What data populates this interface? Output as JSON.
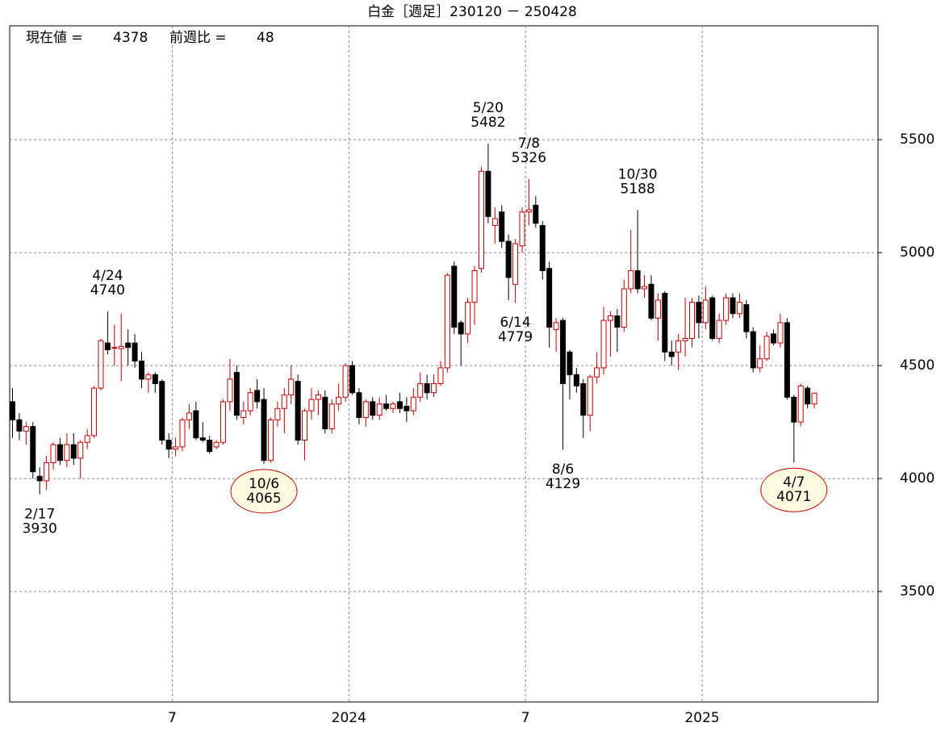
{
  "chart_data": {
    "type": "candlestick",
    "title": "白金［週足］230120 － 250428",
    "current_label": "現在値 =",
    "current": 4378,
    "change_label": "前週比 =",
    "change": 48,
    "up_color": "#c00000",
    "down_color": "#000000",
    "grid": true,
    "ylim": [
      3011,
      6004
    ],
    "yticks": [
      3500,
      4000,
      4500,
      5000,
      5500
    ],
    "categories": [
      null,
      null,
      null,
      null,
      null,
      null,
      null,
      null,
      null,
      null,
      null,
      null,
      null,
      null,
      null,
      null,
      null,
      null,
      null,
      null,
      null,
      null,
      null,
      null,
      "7",
      null,
      null,
      null,
      null,
      null,
      null,
      null,
      null,
      null,
      null,
      null,
      null,
      null,
      null,
      null,
      null,
      null,
      null,
      null,
      null,
      null,
      null,
      null,
      null,
      null,
      "2024",
      null,
      null,
      null,
      null,
      null,
      null,
      null,
      null,
      null,
      null,
      null,
      null,
      null,
      null,
      null,
      null,
      null,
      null,
      null,
      null,
      null,
      null,
      null,
      null,
      null,
      "7",
      null,
      null,
      null,
      null,
      null,
      null,
      null,
      null,
      null,
      null,
      null,
      null,
      null,
      null,
      null,
      null,
      null,
      null,
      null,
      null,
      null,
      null,
      null,
      null,
      null,
      "2025",
      null,
      null,
      null,
      null,
      null,
      null,
      null,
      null,
      null,
      null,
      null,
      null,
      null,
      null,
      null,
      null
    ],
    "ohlc": [
      [
        4340,
        4400,
        4180,
        4260
      ],
      [
        4260,
        4290,
        4170,
        4210
      ],
      [
        4210,
        4250,
        4150,
        4230
      ],
      [
        4230,
        4250,
        4000,
        4030
      ],
      [
        4010,
        4050,
        3930,
        3990
      ],
      [
        3990,
        4100,
        3950,
        4070
      ],
      [
        4070,
        4160,
        4040,
        4150
      ],
      [
        4150,
        4180,
        4060,
        4080
      ],
      [
        4080,
        4200,
        4050,
        4150
      ],
      [
        4150,
        4200,
        4060,
        4090
      ],
      [
        4090,
        4170,
        4000,
        4160
      ],
      [
        4160,
        4220,
        4130,
        4190
      ],
      [
        4190,
        4410,
        4180,
        4400
      ],
      [
        4400,
        4620,
        4390,
        4610
      ],
      [
        4600,
        4740,
        4550,
        4570
      ],
      [
        4580,
        4680,
        4500,
        4580
      ],
      [
        4575,
        4730,
        4430,
        4585
      ],
      [
        4600,
        4660,
        4500,
        4580
      ],
      [
        4600,
        4640,
        4490,
        4520
      ],
      [
        4520,
        4560,
        4400,
        4440
      ],
      [
        4440,
        4470,
        4380,
        4460
      ],
      [
        4460,
        4470,
        4380,
        4420
      ],
      [
        4430,
        4440,
        4150,
        4170
      ],
      [
        4170,
        4200,
        4090,
        4130
      ],
      [
        4130,
        4180,
        4100,
        4140
      ],
      [
        4140,
        4270,
        4120,
        4260
      ],
      [
        4260,
        4330,
        4220,
        4290
      ],
      [
        4300,
        4340,
        4170,
        4180
      ],
      [
        4180,
        4250,
        4160,
        4170
      ],
      [
        4170,
        4190,
        4110,
        4120
      ],
      [
        4140,
        4170,
        4130,
        4160
      ],
      [
        4160,
        4350,
        4150,
        4340
      ],
      [
        4340,
        4530,
        4300,
        4440
      ],
      [
        4470,
        4500,
        4260,
        4280
      ],
      [
        4270,
        4340,
        4240,
        4300
      ],
      [
        4300,
        4400,
        4280,
        4380
      ],
      [
        4390,
        4440,
        4310,
        4340
      ],
      [
        4350,
        4400,
        4065,
        4080
      ],
      [
        4080,
        4270,
        4070,
        4260
      ],
      [
        4260,
        4340,
        4230,
        4310
      ],
      [
        4310,
        4400,
        4200,
        4370
      ],
      [
        4370,
        4500,
        4330,
        4440
      ],
      [
        4430,
        4460,
        4150,
        4170
      ],
      [
        4170,
        4310,
        4080,
        4300
      ],
      [
        4300,
        4400,
        4260,
        4350
      ],
      [
        4350,
        4390,
        4280,
        4370
      ],
      [
        4360,
        4390,
        4200,
        4220
      ],
      [
        4220,
        4350,
        4200,
        4330
      ],
      [
        4330,
        4420,
        4300,
        4360
      ],
      [
        4360,
        4510,
        4340,
        4500
      ],
      [
        4500,
        4520,
        4370,
        4380
      ],
      [
        4380,
        4400,
        4240,
        4270
      ],
      [
        4270,
        4350,
        4230,
        4340
      ],
      [
        4340,
        4360,
        4260,
        4280
      ],
      [
        4280,
        4360,
        4260,
        4330
      ],
      [
        4330,
        4370,
        4300,
        4310
      ],
      [
        4310,
        4340,
        4290,
        4330
      ],
      [
        4340,
        4380,
        4290,
        4310
      ],
      [
        4320,
        4360,
        4250,
        4300
      ],
      [
        4300,
        4400,
        4280,
        4360
      ],
      [
        4360,
        4470,
        4340,
        4420
      ],
      [
        4420,
        4460,
        4350,
        4380
      ],
      [
        4380,
        4460,
        4360,
        4420
      ],
      [
        4420,
        4520,
        4410,
        4490
      ],
      [
        4490,
        4910,
        4470,
        4900
      ],
      [
        4940,
        4960,
        4640,
        4670
      ],
      [
        4690,
        4700,
        4500,
        4640
      ],
      [
        4640,
        4800,
        4600,
        4780
      ],
      [
        4780,
        4940,
        4680,
        4920
      ],
      [
        4930,
        5380,
        4910,
        5360
      ],
      [
        5360,
        5482,
        5130,
        5160
      ],
      [
        5120,
        5200,
        5040,
        5150
      ],
      [
        5180,
        5210,
        5020,
        5050
      ],
      [
        5050,
        5080,
        4790,
        4890
      ],
      [
        4860,
        5060,
        4779,
        5040
      ],
      [
        5030,
        5200,
        5000,
        5180
      ],
      [
        5180,
        5326,
        5120,
        5190
      ],
      [
        5210,
        5250,
        5110,
        5130
      ],
      [
        5120,
        5140,
        4880,
        4920
      ],
      [
        4930,
        4960,
        4580,
        4670
      ],
      [
        4660,
        4710,
        4560,
        4690
      ],
      [
        4700,
        4710,
        4129,
        4420
      ],
      [
        4560,
        4570,
        4350,
        4460
      ],
      [
        4460,
        4490,
        4380,
        4410
      ],
      [
        4420,
        4440,
        4180,
        4280
      ],
      [
        4280,
        4460,
        4210,
        4450
      ],
      [
        4450,
        4560,
        4420,
        4490
      ],
      [
        4490,
        4760,
        4460,
        4700
      ],
      [
        4700,
        4740,
        4540,
        4720
      ],
      [
        4720,
        4750,
        4560,
        4670
      ],
      [
        4670,
        4880,
        4650,
        4840
      ],
      [
        4840,
        5100,
        4820,
        4920
      ],
      [
        4920,
        5188,
        4820,
        4840
      ],
      [
        4840,
        4900,
        4800,
        4850
      ],
      [
        4860,
        4900,
        4700,
        4710
      ],
      [
        4710,
        4820,
        4610,
        4790
      ],
      [
        4820,
        4830,
        4520,
        4560
      ],
      [
        4560,
        4610,
        4500,
        4540
      ],
      [
        4560,
        4640,
        4480,
        4610
      ],
      [
        4610,
        4800,
        4540,
        4620
      ],
      [
        4620,
        4800,
        4580,
        4780
      ],
      [
        4780,
        4810,
        4620,
        4690
      ],
      [
        4690,
        4850,
        4660,
        4790
      ],
      [
        4800,
        4810,
        4610,
        4620
      ],
      [
        4620,
        4730,
        4600,
        4700
      ],
      [
        4700,
        4820,
        4680,
        4800
      ],
      [
        4800,
        4820,
        4710,
        4730
      ],
      [
        4730,
        4820,
        4710,
        4780
      ],
      [
        4770,
        4790,
        4620,
        4650
      ],
      [
        4650,
        4670,
        4470,
        4490
      ],
      [
        4490,
        4590,
        4470,
        4530
      ],
      [
        4530,
        4650,
        4520,
        4630
      ],
      [
        4640,
        4660,
        4590,
        4600
      ],
      [
        4600,
        4730,
        4580,
        4690
      ],
      [
        4690,
        4710,
        4350,
        4360
      ],
      [
        4360,
        4370,
        4071,
        4250
      ],
      [
        4250,
        4420,
        4230,
        4410
      ],
      [
        4400,
        4410,
        4310,
        4330
      ],
      [
        4330,
        4380,
        4310,
        4378
      ]
    ],
    "annotations": [
      {
        "text": "2/17",
        "value": 3930,
        "circled": false
      },
      {
        "text": "4/24",
        "value": 4740,
        "circled": false
      },
      {
        "text": "10/6",
        "value": 4065,
        "circled": true
      },
      {
        "text": "5/20",
        "value": 5482,
        "circled": false
      },
      {
        "text": "6/14",
        "value": 4779,
        "circled": false
      },
      {
        "text": "7/8",
        "value": 5326,
        "circled": false
      },
      {
        "text": "8/6",
        "value": 4129,
        "circled": false
      },
      {
        "text": "10/30",
        "value": 5188,
        "circled": false
      },
      {
        "text": "4/7",
        "value": 4071,
        "circled": true
      }
    ]
  }
}
